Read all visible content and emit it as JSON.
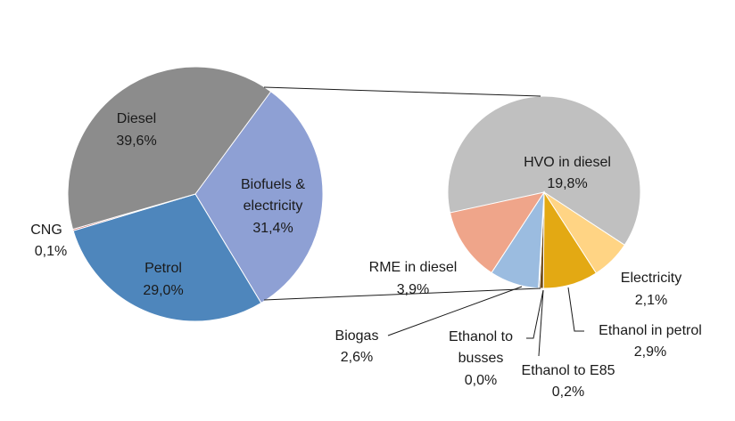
{
  "chart_data": [
    {
      "type": "pie",
      "title": "",
      "slices": [
        {
          "label": "Diesel",
          "value": 39.6,
          "display": "39,6%",
          "color": "#8c8c8c"
        },
        {
          "label": "Biofuels &",
          "label2": "electricity",
          "value": 31.4,
          "display": "31,4%",
          "color": "#8ea0d4"
        },
        {
          "label": "Petrol",
          "value": 29.0,
          "display": "29,0%",
          "color": "#4e86bc"
        },
        {
          "label": "CNG",
          "value": 0.1,
          "display": "0,1%",
          "color": "#c0504d"
        }
      ]
    },
    {
      "type": "pie",
      "title": "",
      "breakdown_of": "Biofuels & electricity",
      "slices": [
        {
          "label": "HVO in diesel",
          "value": 19.8,
          "display": "19,8%",
          "color": "#c0c0c0"
        },
        {
          "label": "Electricity",
          "value": 2.1,
          "display": "2,1%",
          "color": "#ffd484"
        },
        {
          "label": "Ethanol in petrol",
          "value": 2.9,
          "display": "2,9%",
          "color": "#e3a913"
        },
        {
          "label": "Ethanol to E85",
          "value": 0.2,
          "display": "0,2%",
          "color": "#6e4a1b"
        },
        {
          "label": "Ethanol to",
          "label2": "busses",
          "value": 0.0,
          "display": "0,0%",
          "color": "#2f4f8f"
        },
        {
          "label": "Biogas",
          "value": 2.6,
          "display": "2,6%",
          "color": "#9bbce0"
        },
        {
          "label": "RME in diesel",
          "value": 3.9,
          "display": "3,9%",
          "color": "#efa58a"
        }
      ]
    }
  ]
}
